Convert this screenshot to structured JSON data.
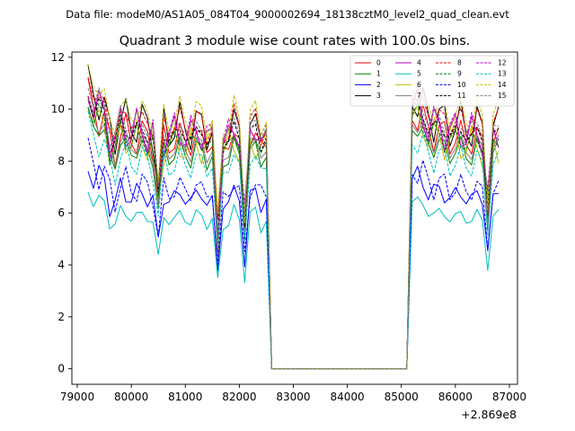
{
  "chart_data": {
    "type": "line",
    "suptitle": "Data file: modeM0/AS1A05_084T04_9000002694_18138cztM0_level2_quad_clean.evt",
    "title": "Quadrant 3 module wise count rates with 100.0s bins.",
    "xlabel": "",
    "ylabel": "",
    "x_offset_label": "+2.869e8",
    "xlim": [
      78900,
      87150
    ],
    "ylim": [
      -0.6,
      12.2
    ],
    "xticks": [
      79000,
      80000,
      81000,
      82000,
      83000,
      84000,
      85000,
      86000,
      87000
    ],
    "xtick_labels": [
      "79000",
      "80000",
      "81000",
      "82000",
      "83000",
      "84000",
      "85000",
      "86000",
      "87000"
    ],
    "yticks": [
      0,
      2,
      4,
      6,
      8,
      10,
      12
    ],
    "ytick_labels": [
      "0",
      "2",
      "4",
      "6",
      "8",
      "10",
      "12"
    ],
    "legend_location": "upper-right",
    "legend_ncol": 4,
    "segments": [
      {
        "start": 79200,
        "end": 82500
      },
      {
        "start": 82600,
        "end": 85100
      },
      {
        "start": 85200,
        "end": 86800
      }
    ],
    "series": [
      {
        "name": "0",
        "color": "#ff0000",
        "dash": "solid",
        "base": 8.8,
        "amp": 0.55,
        "phase": 0.3
      },
      {
        "name": "1",
        "color": "#008000",
        "dash": "solid",
        "base": 8.3,
        "amp": 0.45,
        "phase": 1.1
      },
      {
        "name": "2",
        "color": "#0000ff",
        "dash": "solid",
        "base": 6.6,
        "amp": 0.55,
        "phase": 2.0
      },
      {
        "name": "3",
        "color": "#000000",
        "dash": "solid",
        "base": 9.3,
        "amp": 0.65,
        "phase": 0.7
      },
      {
        "name": "4",
        "color": "#bf00bf",
        "dash": "solid",
        "base": 9.0,
        "amp": 0.6,
        "phase": 2.6
      },
      {
        "name": "5",
        "color": "#00bfbf",
        "dash": "solid",
        "base": 5.8,
        "amp": 0.45,
        "phase": 1.7
      },
      {
        "name": "6",
        "color": "#bfbf00",
        "dash": "solid",
        "base": 8.6,
        "amp": 0.5,
        "phase": 3.1
      },
      {
        "name": "7",
        "color": "#808080",
        "dash": "solid",
        "base": 8.5,
        "amp": 0.4,
        "phase": 0.9
      },
      {
        "name": "8",
        "color": "#ff0000",
        "dash": "dashed",
        "base": 9.4,
        "amp": 0.6,
        "phase": 1.4
      },
      {
        "name": "9",
        "color": "#008000",
        "dash": "dashed",
        "base": 8.7,
        "amp": 0.5,
        "phase": 2.3
      },
      {
        "name": "10",
        "color": "#0000ff",
        "dash": "dashed",
        "base": 6.9,
        "amp": 0.5,
        "phase": 0.1
      },
      {
        "name": "11",
        "color": "#000000",
        "dash": "dashed",
        "base": 9.0,
        "amp": 0.55,
        "phase": 1.9
      },
      {
        "name": "12",
        "color": "#bf00bf",
        "dash": "dashed",
        "base": 9.1,
        "amp": 0.55,
        "phase": 2.8
      },
      {
        "name": "13",
        "color": "#00bfbf",
        "dash": "dashed",
        "base": 7.9,
        "amp": 0.45,
        "phase": 0.5
      },
      {
        "name": "14",
        "color": "#bfbf00",
        "dash": "dashed",
        "base": 9.7,
        "amp": 0.6,
        "phase": 1.2
      },
      {
        "name": "15",
        "color": "#808080",
        "dash": "dashed",
        "base": 9.3,
        "amp": 0.5,
        "phase": 2.1
      }
    ]
  }
}
